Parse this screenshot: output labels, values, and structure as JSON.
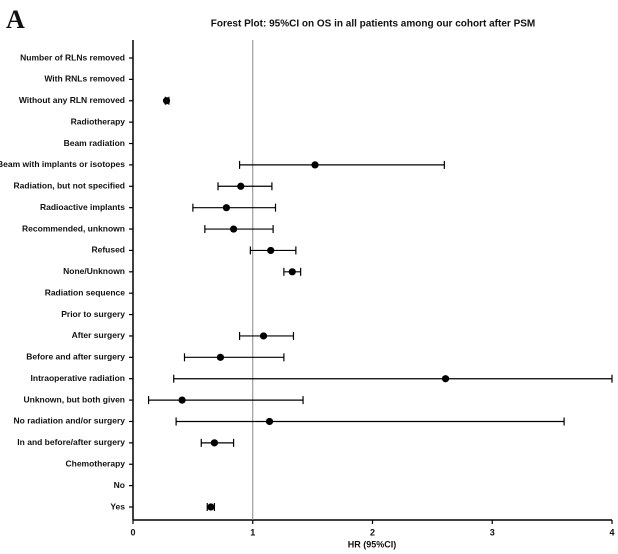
{
  "chart_data": {
    "type": "forest",
    "panel_label": "A",
    "title": "Forest Plot: 95%CI on OS in all patients among our cohort after PSM",
    "x_label": "HR (95%CI)",
    "categories": [
      "Number of RLNs removed",
      "With RNLs removed",
      "Without any RLN removed",
      "Radiotherapy",
      "Beam radiation",
      "Beam with implants or isotopes",
      "Radiation, but not specified",
      "Radioactive implants",
      "Recommended, unknown",
      "Refused",
      "None/Unknown",
      "Radiation sequence",
      "Prior to surgery",
      "After surgery",
      "Before and after surgery",
      "Intraoperative radiation",
      "Unknown, but both given",
      "No radiation and/or surgery",
      "In and before/after surgery",
      "Chemotherapy",
      "No",
      "Yes"
    ],
    "values": [
      null,
      null,
      0.28,
      null,
      null,
      1.52,
      0.9,
      0.78,
      0.84,
      1.15,
      1.33,
      null,
      null,
      1.09,
      0.73,
      2.61,
      0.41,
      1.14,
      0.68,
      null,
      null,
      0.65
    ],
    "lower": [
      null,
      null,
      0.27,
      null,
      null,
      0.89,
      0.71,
      0.5,
      0.6,
      0.98,
      1.26,
      null,
      null,
      0.89,
      0.43,
      0.34,
      0.13,
      0.36,
      0.57,
      null,
      null,
      0.62
    ],
    "upper": [
      null,
      null,
      0.3,
      null,
      null,
      2.6,
      1.16,
      1.19,
      1.17,
      1.36,
      1.4,
      null,
      null,
      1.34,
      1.26,
      4.0,
      1.42,
      3.6,
      0.84,
      null,
      null,
      0.68
    ],
    "reference_line": 1,
    "color": "#000000",
    "xlim": [
      0,
      4
    ],
    "xticks": [
      0,
      1,
      2,
      3,
      4
    ]
  }
}
